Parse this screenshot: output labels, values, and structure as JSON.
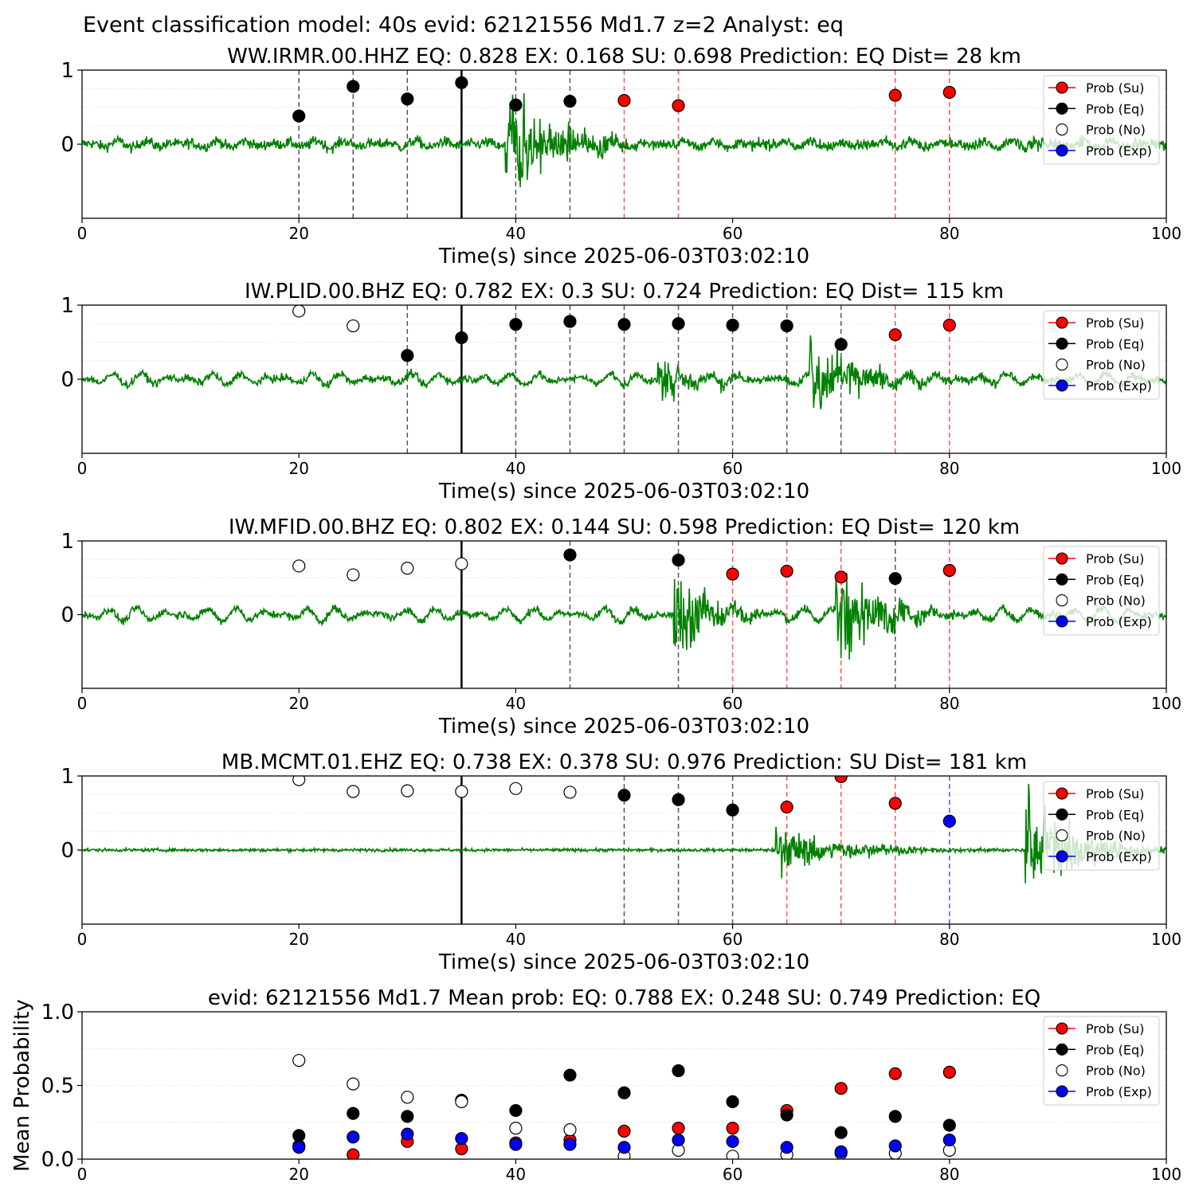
{
  "figure_title": "Event classification model: 40s evid: 62121556 Md1.7 z=2 Analyst: eq",
  "legend": [
    {
      "label": "Prob (Su)",
      "color": "#ff0000",
      "line": "#ff0000"
    },
    {
      "label": "Prob (Eq)",
      "color": "#000000",
      "line": "#000000"
    },
    {
      "label": "Prob (No)",
      "color": "#ffffff",
      "line": "#ffffff"
    },
    {
      "label": "Prob (Exp)",
      "color": "#0000ff",
      "line": "#0000ff"
    }
  ],
  "colors": {
    "waveform": "#008000",
    "su": "#ff0000",
    "eq": "#000000",
    "no": "#ffffff",
    "exp": "#0000ff",
    "vline_eq": "#555555",
    "vline_su": "#ff5555",
    "vline_exp": "#5555ff",
    "origin_line": "#000000"
  },
  "chart_data": [
    {
      "type": "line",
      "title": "WW.IRMR.00.HHZ   EQ: 0.828  EX: 0.168  SU: 0.698   Prediction: EQ    Dist= 28 km",
      "xlabel": "Time(s) since 2025-06-03T03:02:10",
      "ylabel": "",
      "xlim": [
        0,
        100
      ],
      "ylim": [
        -1,
        1
      ],
      "xticks": [
        "0",
        "20",
        "40",
        "60",
        "80",
        "100"
      ],
      "yticks": [
        "1",
        "0"
      ],
      "origin_time": 35,
      "waveform": {
        "noise": 0.07,
        "wavelet": 0.05,
        "bursts": [
          {
            "t": 39,
            "amp": 0.8,
            "dur": 14
          },
          {
            "t": 87,
            "amp": 0.08,
            "dur": 13
          }
        ]
      },
      "markers": [
        {
          "t": 20,
          "cls": "eq",
          "p": 0.38,
          "line": "eq"
        },
        {
          "t": 25,
          "cls": "eq",
          "p": 0.78,
          "line": "eq"
        },
        {
          "t": 30,
          "cls": "eq",
          "p": 0.61,
          "line": "eq"
        },
        {
          "t": 35,
          "cls": "eq",
          "p": 0.83,
          "line": "origin"
        },
        {
          "t": 40,
          "cls": "eq",
          "p": 0.53,
          "line": "eq"
        },
        {
          "t": 45,
          "cls": "eq",
          "p": 0.58,
          "line": "eq"
        },
        {
          "t": 50,
          "cls": "su",
          "p": 0.59,
          "line": "su"
        },
        {
          "t": 55,
          "cls": "su",
          "p": 0.52,
          "line": "su"
        },
        {
          "t": 75,
          "cls": "su",
          "p": 0.66,
          "line": "su"
        },
        {
          "t": 80,
          "cls": "su",
          "p": 0.7,
          "line": "su"
        }
      ]
    },
    {
      "type": "line",
      "title": "IW.PLID.00.BHZ   EQ: 0.782  EX: 0.3  SU: 0.724   Prediction: EQ    Dist= 115 km",
      "xlabel": "Time(s) since 2025-06-03T03:02:10",
      "ylabel": "",
      "xlim": [
        0,
        100
      ],
      "ylim": [
        -1,
        1
      ],
      "xticks": [
        "0",
        "20",
        "40",
        "60",
        "80",
        "100"
      ],
      "yticks": [
        "1",
        "0"
      ],
      "origin_time": 35,
      "waveform": {
        "noise": 0.05,
        "wavelet": 0.08,
        "bursts": [
          {
            "t": 53,
            "amp": 0.3,
            "dur": 14
          },
          {
            "t": 67,
            "amp": 0.6,
            "dur": 14
          }
        ]
      },
      "markers": [
        {
          "t": 20,
          "cls": "no",
          "p": 0.92,
          "line": null
        },
        {
          "t": 25,
          "cls": "no",
          "p": 0.72,
          "line": null
        },
        {
          "t": 30,
          "cls": "eq",
          "p": 0.32,
          "line": "eq"
        },
        {
          "t": 35,
          "cls": "eq",
          "p": 0.56,
          "line": "origin"
        },
        {
          "t": 40,
          "cls": "eq",
          "p": 0.74,
          "line": "eq"
        },
        {
          "t": 45,
          "cls": "eq",
          "p": 0.78,
          "line": "eq"
        },
        {
          "t": 50,
          "cls": "eq",
          "p": 0.74,
          "line": "eq"
        },
        {
          "t": 55,
          "cls": "eq",
          "p": 0.75,
          "line": "eq"
        },
        {
          "t": 60,
          "cls": "eq",
          "p": 0.73,
          "line": "eq"
        },
        {
          "t": 65,
          "cls": "eq",
          "p": 0.72,
          "line": "eq"
        },
        {
          "t": 70,
          "cls": "eq",
          "p": 0.47,
          "line": "eq"
        },
        {
          "t": 75,
          "cls": "su",
          "p": 0.6,
          "line": "su"
        },
        {
          "t": 80,
          "cls": "su",
          "p": 0.73,
          "line": "su"
        }
      ]
    },
    {
      "type": "line",
      "title": "IW.MFID.00.BHZ   EQ: 0.802  EX: 0.144  SU: 0.598   Prediction: EQ    Dist= 120 km",
      "xlabel": "Time(s) since 2025-06-03T03:02:10",
      "ylabel": "",
      "xlim": [
        0,
        100
      ],
      "ylim": [
        -1,
        1
      ],
      "xticks": [
        "0",
        "20",
        "40",
        "60",
        "80",
        "100"
      ],
      "yticks": [
        "1",
        "0"
      ],
      "origin_time": 35,
      "waveform": {
        "noise": 0.05,
        "wavelet": 0.09,
        "bursts": [
          {
            "t": 54.5,
            "amp": 0.7,
            "dur": 10
          },
          {
            "t": 69.5,
            "amp": 0.8,
            "dur": 12
          }
        ]
      },
      "markers": [
        {
          "t": 20,
          "cls": "no",
          "p": 0.66,
          "line": null
        },
        {
          "t": 25,
          "cls": "no",
          "p": 0.54,
          "line": null
        },
        {
          "t": 30,
          "cls": "no",
          "p": 0.63,
          "line": null
        },
        {
          "t": 35,
          "cls": "no",
          "p": 0.69,
          "line": "origin"
        },
        {
          "t": 45,
          "cls": "eq",
          "p": 0.81,
          "line": "eq"
        },
        {
          "t": 55,
          "cls": "eq",
          "p": 0.74,
          "line": "eq"
        },
        {
          "t": 60,
          "cls": "su",
          "p": 0.55,
          "line": "su"
        },
        {
          "t": 65,
          "cls": "su",
          "p": 0.59,
          "line": "su"
        },
        {
          "t": 70,
          "cls": "su",
          "p": 0.51,
          "line": "su"
        },
        {
          "t": 75,
          "cls": "eq",
          "p": 0.49,
          "line": "eq"
        },
        {
          "t": 80,
          "cls": "su",
          "p": 0.6,
          "line": "su"
        }
      ]
    },
    {
      "type": "line",
      "title": "MB.MCMT.01.EHZ   EQ: 0.738  EX: 0.378  SU: 0.976   Prediction: SU    Dist= 181 km",
      "xlabel": "Time(s) since 2025-06-03T03:02:10",
      "ylabel": "",
      "xlim": [
        0,
        100
      ],
      "ylim": [
        -1,
        1
      ],
      "xticks": [
        "0",
        "20",
        "40",
        "60",
        "80",
        "100"
      ],
      "yticks": [
        "1",
        "0"
      ],
      "origin_time": 35,
      "waveform": {
        "noise": 0.02,
        "wavelet": 0.0,
        "bursts": [
          {
            "t": 64,
            "amp": 0.3,
            "dur": 20
          },
          {
            "t": 87,
            "amp": 0.8,
            "dur": 13
          }
        ]
      },
      "markers": [
        {
          "t": 20,
          "cls": "no",
          "p": 0.95,
          "line": null
        },
        {
          "t": 25,
          "cls": "no",
          "p": 0.79,
          "line": null
        },
        {
          "t": 30,
          "cls": "no",
          "p": 0.8,
          "line": null
        },
        {
          "t": 35,
          "cls": "no",
          "p": 0.79,
          "line": "origin"
        },
        {
          "t": 40,
          "cls": "no",
          "p": 0.83,
          "line": null
        },
        {
          "t": 45,
          "cls": "no",
          "p": 0.78,
          "line": null
        },
        {
          "t": 50,
          "cls": "eq",
          "p": 0.74,
          "line": "eq"
        },
        {
          "t": 55,
          "cls": "eq",
          "p": 0.68,
          "line": "eq"
        },
        {
          "t": 60,
          "cls": "eq",
          "p": 0.54,
          "line": "eq"
        },
        {
          "t": 65,
          "cls": "su",
          "p": 0.58,
          "line": "su"
        },
        {
          "t": 70,
          "cls": "su",
          "p": 0.99,
          "line": "su"
        },
        {
          "t": 75,
          "cls": "su",
          "p": 0.63,
          "line": "su"
        },
        {
          "t": 80,
          "cls": "exp",
          "p": 0.39,
          "line": "exp"
        }
      ]
    },
    {
      "type": "scatter",
      "title": "evid: 62121556  Md1.7   Mean prob:   EQ: 0.788  EX: 0.248  SU: 0.749   Prediction: EQ",
      "xlabel": "",
      "ylabel": "Mean Probability",
      "xlim": [
        0,
        100
      ],
      "ylim": [
        0,
        1
      ],
      "xticks": [
        "0",
        "20",
        "40",
        "60",
        "80",
        "100"
      ],
      "yticks": [
        "0.0",
        "0.5",
        "1.0"
      ],
      "x": [
        20,
        25,
        30,
        35,
        40,
        45,
        50,
        55,
        60,
        65,
        70,
        75,
        80
      ],
      "series": [
        {
          "name": "Prob (Su)",
          "cls": "su",
          "values": [
            0.09,
            0.03,
            0.12,
            0.07,
            0.11,
            0.13,
            0.19,
            0.21,
            0.21,
            0.33,
            0.48,
            0.58,
            0.59
          ]
        },
        {
          "name": "Prob (Eq)",
          "cls": "eq",
          "values": [
            0.16,
            0.31,
            0.29,
            0.4,
            0.33,
            0.57,
            0.45,
            0.6,
            0.39,
            0.3,
            0.18,
            0.29,
            0.23
          ]
        },
        {
          "name": "Prob (No)",
          "cls": "no",
          "values": [
            0.67,
            0.51,
            0.42,
            0.39,
            0.21,
            0.2,
            0.02,
            0.06,
            0.02,
            0.03,
            0.04,
            0.04,
            0.06
          ]
        },
        {
          "name": "Prob (Exp)",
          "cls": "exp",
          "values": [
            0.08,
            0.15,
            0.17,
            0.14,
            0.1,
            0.1,
            0.08,
            0.13,
            0.12,
            0.08,
            0.05,
            0.09,
            0.13
          ]
        }
      ]
    }
  ]
}
